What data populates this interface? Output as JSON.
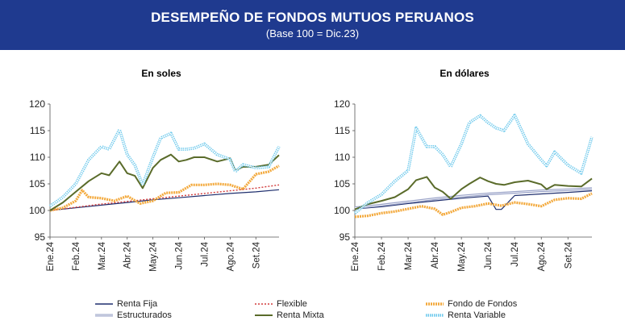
{
  "header": {
    "title": "DESEMPEÑO DE FONDOS MUTUOS PERUANOS",
    "subtitle": "(Base 100 = Dic.23)"
  },
  "colors": {
    "header_bg": "#1f3a8f",
    "renta_fija": "#1f2f6e",
    "estructurados": "#9aa3c8",
    "flexible": "#d23b3b",
    "renta_mixta": "#5a6b2a",
    "fondo_de_fondos": "#f3a93c",
    "renta_variable": "#6ec9ec"
  },
  "legend": [
    {
      "key": "renta_fija",
      "label": "Renta Fija"
    },
    {
      "key": "flexible",
      "label": "Flexible"
    },
    {
      "key": "fondo_de_fondos",
      "label": "Fondo de Fondos"
    },
    {
      "key": "estructurados",
      "label": "Estructurados"
    },
    {
      "key": "renta_mixta",
      "label": "Renta Mixta"
    },
    {
      "key": "renta_variable",
      "label": "Renta Variable"
    }
  ],
  "chart_data": [
    {
      "type": "line",
      "title": "En soles",
      "ylim": [
        95,
        120
      ],
      "yticks": [
        95,
        100,
        105,
        110,
        115,
        120
      ],
      "xticks": [
        "Ene.24",
        "Feb.24",
        "Mar.24",
        "Abr.24",
        "May.24",
        "Jun.24",
        "Jul.24",
        "Ago.24",
        "Set.24"
      ],
      "x_range": [
        0,
        8.9
      ],
      "series": [
        {
          "key": "renta_fija",
          "name": "Renta Fija",
          "x": [
            0,
            1,
            2,
            3,
            4,
            5,
            6,
            7,
            8,
            8.9
          ],
          "values": [
            100,
            100.5,
            101,
            101.5,
            102,
            102.4,
            102.8,
            103.2,
            103.5,
            103.9
          ]
        },
        {
          "key": "flexible",
          "name": "Flexible",
          "x": [
            0,
            1,
            2,
            3,
            4,
            5,
            6,
            7,
            8,
            8.9
          ],
          "values": [
            100,
            100.6,
            101.2,
            101.7,
            102.2,
            102.7,
            103.2,
            103.7,
            104.2,
            104.8
          ]
        },
        {
          "key": "fondo_de_fondos",
          "name": "Fondo de Fondos",
          "x": [
            0,
            0.5,
            1,
            1.25,
            1.5,
            2,
            2.5,
            3,
            3.5,
            4,
            4.5,
            5,
            5.5,
            6,
            6.5,
            7,
            7.5,
            8,
            8.5,
            8.9
          ],
          "values": [
            100,
            100.5,
            101.8,
            103.8,
            102.5,
            102.3,
            101.8,
            102.7,
            101.3,
            101.8,
            103.3,
            103.4,
            104.8,
            104.8,
            105,
            104.8,
            104,
            106.8,
            107.3,
            108.4
          ]
        },
        {
          "key": "renta_mixta",
          "name": "Renta Mixta",
          "x": [
            0,
            0.5,
            1,
            1.5,
            2,
            2.3,
            2.7,
            3,
            3.3,
            3.6,
            4,
            4.3,
            4.7,
            5,
            5.3,
            5.6,
            6,
            6.5,
            7,
            7.2,
            7.5,
            8,
            8.5,
            8.9
          ],
          "values": [
            100,
            101.5,
            103.5,
            105.5,
            107,
            106.6,
            109.2,
            107,
            106.5,
            104.2,
            108,
            109.5,
            110.5,
            109.2,
            109.5,
            110,
            110,
            109.2,
            109.8,
            107.5,
            108.2,
            108.2,
            108.6,
            110.4
          ]
        },
        {
          "key": "renta_variable",
          "name": "Renta Variable",
          "x": [
            0,
            0.5,
            1,
            1.5,
            2,
            2.3,
            2.7,
            3,
            3.3,
            3.6,
            4,
            4.3,
            4.7,
            5,
            5.3,
            5.6,
            6,
            6.5,
            7,
            7.2,
            7.5,
            8,
            8.5,
            8.9
          ],
          "values": [
            100.8,
            102.5,
            105,
            109.5,
            112,
            111.5,
            115.2,
            110.5,
            108.5,
            104.8,
            110,
            113.6,
            114.5,
            111.5,
            111.5,
            111.7,
            112.5,
            110.5,
            109.6,
            107.3,
            108.6,
            108,
            108.2,
            112
          ]
        }
      ]
    },
    {
      "type": "line",
      "title": "En dólares",
      "ylim": [
        95,
        120
      ],
      "yticks": [
        95,
        100,
        105,
        110,
        115,
        120
      ],
      "xticks": [
        "Ene.24",
        "Feb.24",
        "Mar.24",
        "Abr.24",
        "May.24",
        "Jun.24",
        "Jul.24",
        "Ago.24",
        "Set.24"
      ],
      "x_range": [
        0,
        8.9
      ],
      "series": [
        {
          "key": "renta_fija",
          "name": "Renta Fija",
          "x": [
            0,
            1,
            2,
            3,
            4,
            5,
            5.3,
            5.5,
            6,
            7,
            8,
            8.9
          ],
          "values": [
            100.3,
            100.7,
            101.3,
            101.8,
            102.3,
            102.7,
            100.2,
            100.2,
            102.8,
            103.1,
            103.4,
            103.7
          ]
        },
        {
          "key": "estructurados",
          "name": "Estructurados",
          "x": [
            0,
            1,
            2,
            3,
            4,
            5,
            6,
            7,
            8,
            8.9
          ],
          "values": [
            100.5,
            101,
            101.6,
            102.2,
            102.7,
            103.1,
            103.4,
            103.7,
            103.9,
            104.1
          ]
        },
        {
          "key": "fondo_de_fondos",
          "name": "Fondo de Fondos",
          "x": [
            0,
            0.5,
            1,
            1.5,
            2,
            2.5,
            3,
            3.3,
            3.6,
            4,
            4.5,
            5,
            5.5,
            6,
            6.5,
            7,
            7.5,
            8,
            8.5,
            8.9
          ],
          "values": [
            98.8,
            99,
            99.5,
            99.8,
            100.3,
            100.8,
            100.3,
            99.2,
            99.7,
            100.5,
            100.8,
            101.3,
            100.9,
            101.5,
            101.2,
            100.8,
            102,
            102.3,
            102.2,
            103.2
          ]
        },
        {
          "key": "renta_mixta",
          "name": "Renta Mixta",
          "x": [
            0,
            0.5,
            1,
            1.5,
            2,
            2.3,
            2.7,
            3,
            3.3,
            3.6,
            4,
            4.3,
            4.7,
            5,
            5.3,
            5.6,
            6,
            6.5,
            7,
            7.2,
            7.5,
            8,
            8.5,
            8.9
          ],
          "values": [
            100.2,
            101.2,
            101.8,
            102.5,
            104,
            105.7,
            106.3,
            104.3,
            103.5,
            102.2,
            104,
            105,
            106.2,
            105.5,
            105,
            104.8,
            105.3,
            105.6,
            104.9,
            104,
            104.8,
            104.6,
            104.5,
            106
          ]
        },
        {
          "key": "renta_variable",
          "name": "Renta Variable",
          "x": [
            0,
            0.5,
            1,
            1.5,
            2,
            2.3,
            2.7,
            3,
            3.3,
            3.6,
            4,
            4.3,
            4.7,
            5,
            5.3,
            5.6,
            6,
            6.5,
            7,
            7.2,
            7.5,
            8,
            8.5,
            8.9
          ],
          "values": [
            99.5,
            101.5,
            103,
            105.5,
            107.5,
            115.5,
            112,
            112,
            110.5,
            108.2,
            112.5,
            116.5,
            117.8,
            116.5,
            115.5,
            115,
            117.9,
            112.5,
            109.5,
            108.4,
            111,
            108.5,
            107,
            113.8
          ]
        }
      ]
    }
  ]
}
